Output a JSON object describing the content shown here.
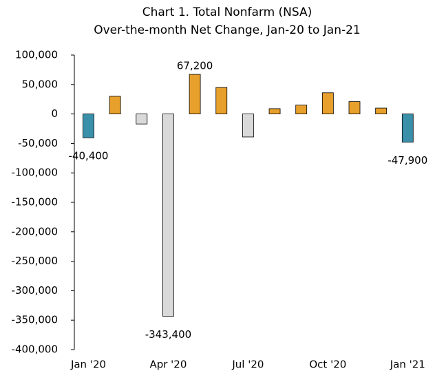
{
  "chart_data": {
    "type": "bar",
    "title": "Chart 1. Total Nonfarm (NSA)",
    "subtitle": "Over-the-month Net Change, Jan-20 to Jan-21",
    "categories": [
      "Jan '20",
      null,
      null,
      "Apr '20",
      null,
      null,
      "Jul '20",
      null,
      null,
      "Oct '20",
      null,
      null,
      "Jan '21"
    ],
    "values": [
      -40400,
      30000,
      -17000,
      -343400,
      67200,
      45000,
      -39000,
      9000,
      15000,
      36000,
      21000,
      10000,
      -47900
    ],
    "value_labels": [
      "-40,400",
      null,
      null,
      "-343,400",
      "67,200",
      null,
      null,
      null,
      null,
      null,
      null,
      null,
      "-47,900"
    ],
    "colors": [
      "#3a8fa9",
      "#e8a02c",
      "#d9d9d9",
      "#d9d9d9",
      "#e8a02c",
      "#e8a02c",
      "#d9d9d9",
      "#e8a02c",
      "#e8a02c",
      "#e8a02c",
      "#e8a02c",
      "#e8a02c",
      "#3a8fa9"
    ],
    "ylim": [
      -400000,
      100000
    ],
    "yticks": [
      {
        "value": -400000,
        "label": "-400,000"
      },
      {
        "value": -350000,
        "label": "-350,000"
      },
      {
        "value": -300000,
        "label": "-300,000"
      },
      {
        "value": -250000,
        "label": "-250,000"
      },
      {
        "value": -200000,
        "label": "-200,000"
      },
      {
        "value": -150000,
        "label": "-150,000"
      },
      {
        "value": -100000,
        "label": "-100,000"
      },
      {
        "value": -50000,
        "label": "-50,000"
      },
      0,
      {
        "value": 50000,
        "label": "50,000"
      },
      {
        "value": 100000,
        "label": "100,000"
      }
    ],
    "grid": false
  }
}
